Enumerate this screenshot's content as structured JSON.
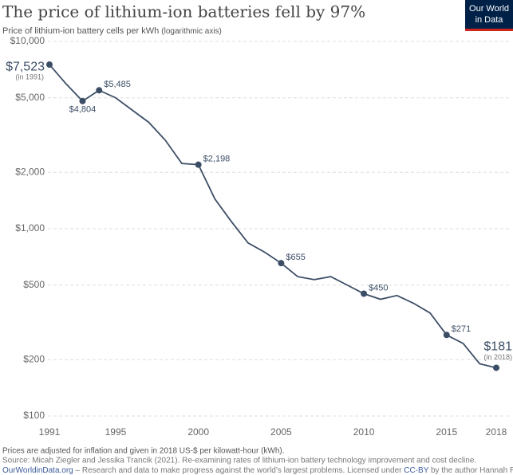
{
  "chart_data": {
    "type": "line",
    "title": "The price of lithium-ion batteries fell by 97%",
    "subtitle": "Price of lithium-ion battery cells per kWh",
    "subtitle_note": "(logarithmic axis)",
    "logo": [
      "Our World",
      "in Data"
    ],
    "x": [
      1991,
      1992,
      1993,
      1994,
      1995,
      1996,
      1997,
      1998,
      1999,
      2000,
      2001,
      2002,
      2003,
      2004,
      2005,
      2006,
      2007,
      2008,
      2009,
      2010,
      2011,
      2012,
      2013,
      2014,
      2015,
      2016,
      2017,
      2018
    ],
    "series": [
      {
        "name": "Price per kWh",
        "color": "#3c4e66",
        "values": [
          7523,
          5940,
          4804,
          5485,
          5000,
          4300,
          3700,
          2970,
          2230,
          2198,
          1440,
          1090,
          840,
          750,
          655,
          555,
          535,
          555,
          500,
          450,
          420,
          440,
          400,
          355,
          271,
          244,
          190,
          181
        ],
        "value_labels": [
          "$7,523",
          null,
          "$4,804",
          "$5,485",
          null,
          null,
          null,
          null,
          null,
          "$2,198",
          null,
          null,
          null,
          null,
          "$655",
          null,
          null,
          null,
          null,
          "$450",
          null,
          null,
          null,
          null,
          "$271",
          null,
          null,
          "$181"
        ]
      }
    ],
    "first_note": "(in 1991)",
    "last_note": "(in 2018)",
    "log_scale": true,
    "grid": true,
    "xlim": [
      1991,
      2018
    ],
    "xticks": [
      1991,
      1995,
      2000,
      2005,
      2010,
      2015,
      2018
    ],
    "ylim": [
      100,
      10000
    ],
    "yticks": [
      {
        "value": 100,
        "label": "$100"
      },
      {
        "value": 200,
        "label": "$200"
      },
      {
        "value": 500,
        "label": "$500"
      },
      {
        "value": 1000,
        "label": "$1,000"
      },
      {
        "value": 2000,
        "label": "$2,000"
      },
      {
        "value": 5000,
        "label": "$5,000"
      },
      {
        "value": 10000,
        "label": "$10,000"
      }
    ],
    "note": "Prices are adjusted for inflation and given in 2018 US-$ per kilowatt-hour (kWh).",
    "source": "Source: Micah Ziegler and Jessika Trancik (2021). Re-examining rates of lithium-ion battery technology improvement and cost decline.",
    "footer_site": "OurWorldinData.org",
    "footer_text": "– Research and data to make progress against the world’s largest problems.",
    "license_prefix": "Licensed under",
    "license": "CC-BY",
    "license_suffix": "by the author Hannah Ritchie."
  }
}
